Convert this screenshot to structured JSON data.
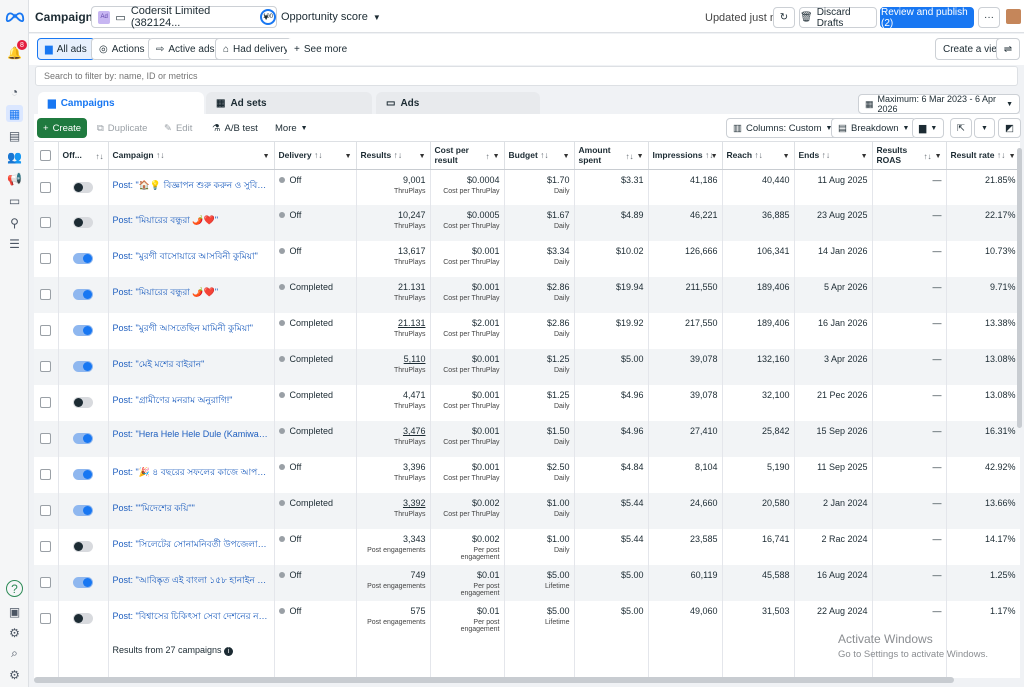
{
  "topbar": {
    "title": "Campaigns",
    "account_initial": "Ad",
    "account_name": "Codersit Limited (382124...",
    "opportunity_ring": "100",
    "opportunity_label": "Opportunity score",
    "updated": "Updated just now",
    "discard": "Discard Drafts",
    "review": "Review and publish (2)"
  },
  "rail": {
    "notification_count": "8"
  },
  "filters": {
    "all_ads": "All ads",
    "actions": "Actions",
    "active_ads": "Active ads",
    "had_delivery": "Had delivery",
    "see_more": "See more",
    "create_view": "Create a view",
    "search_placeholder": "Search to filter by: name, ID or metrics"
  },
  "level_tabs": {
    "campaigns": "Campaigns",
    "ad_sets": "Ad sets",
    "ads": "Ads"
  },
  "date_range": "Maximum: 6 Mar 2023 - 6 Apr 2026",
  "toolbar": {
    "create": "Create",
    "duplicate": "Duplicate",
    "edit": "Edit",
    "ab_test": "A/B test",
    "more": "More",
    "columns": "Columns: Custom",
    "breakdown": "Breakdown"
  },
  "columns": [
    "Off...",
    "Campaign",
    "Delivery",
    "Results",
    "Cost per result",
    "Budget",
    "Amount spent",
    "Impressions",
    "Reach",
    "Ends",
    "Results ROAS",
    "Result rate",
    "Re"
  ],
  "rows": [
    {
      "campaign": "Post: \"🏠💡 বিজ্ঞাপন শুরু করুন ও সুবিধা নিন থেকে দেখুন...",
      "on": false,
      "delivery": "Off",
      "results": "9,001",
      "results_type": "ThruPlays",
      "cpr": "$0.0004",
      "cpr_type": "Cost per ThruPlay",
      "budget": "$1.70",
      "budget_type": "Daily",
      "spent": "$3.31",
      "impressions": "41,186",
      "reach": "40,440",
      "ends": "11 Aug 2025",
      "roas": "—",
      "rate": "21.85%"
    },
    {
      "campaign": "Post: \"মিয়ারের বন্ধুরা 🌶️❤️\"",
      "on": false,
      "delivery": "Off",
      "results": "10,247",
      "results_type": "ThruPlays",
      "cpr": "$0.0005",
      "cpr_type": "Cost per ThruPlay",
      "budget": "$1.67",
      "budget_type": "Daily",
      "spent": "$4.89",
      "impressions": "46,221",
      "reach": "36,885",
      "ends": "23 Aug 2025",
      "roas": "—",
      "rate": "22.17%"
    },
    {
      "campaign": "Post: \"মুরগী বাসোয়ারে আসবিনী কুমিয়া\"",
      "on": true,
      "delivery": "Off",
      "results": "13,617",
      "results_type": "ThruPlays",
      "cpr": "$0.001",
      "cpr_type": "Cost per ThruPlay",
      "budget": "$3.34",
      "budget_type": "Daily",
      "spent": "$10.02",
      "impressions": "126,666",
      "reach": "106,341",
      "ends": "14 Jan 2026",
      "roas": "—",
      "rate": "10.73%"
    },
    {
      "campaign": "Post: \"মিয়ারের বন্ধুরা 🌶️❤️\"",
      "on": true,
      "delivery": "Completed",
      "results": "21.131",
      "results_type": "ThruPlays",
      "cpr": "$0.001",
      "cpr_type": "Cost per ThruPlay",
      "budget": "$2.86",
      "budget_type": "Daily",
      "spent": "$19.94",
      "impressions": "211,550",
      "reach": "189,406",
      "ends": "5 Apr 2026",
      "roas": "—",
      "rate": "9.71%"
    },
    {
      "campaign": "Post: \"মুরগী আসতেছিন মামিনী কুমিয়া\"",
      "on": true,
      "delivery": "Completed",
      "results": "21.131",
      "results_type": "ThruPlays",
      "cpr": "$2.001",
      "cpr_type": "Cost per ThruPlay",
      "budget": "$2.86",
      "budget_type": "Daily",
      "spent": "$19.92",
      "impressions": "217,550",
      "reach": "189,406",
      "ends": "16 Jan 2026",
      "roas": "—",
      "rate": "13.38%"
    },
    {
      "campaign": "Post: \"মেই মশের বাইরান\"",
      "on": true,
      "delivery": "Completed",
      "results": "5,110",
      "results_type": "ThruPlays",
      "cpr": "$0.001",
      "cpr_type": "Cost per ThruPlay",
      "budget": "$1.25",
      "budget_type": "Daily",
      "spent": "$5.00",
      "impressions": "39,078",
      "reach": "132,160",
      "ends": "3 Apr 2026",
      "roas": "—",
      "rate": "13.08%"
    },
    {
      "campaign": "Post: \"গ্রামীণের মনরাম অনুরাগি!\"",
      "on": false,
      "delivery": "Completed",
      "results": "4,471",
      "results_type": "ThruPlays",
      "cpr": "$0.001",
      "cpr_type": "Cost per ThruPlay",
      "budget": "$1.25",
      "budget_type": "Daily",
      "spent": "$4.96",
      "impressions": "39,078",
      "reach": "32,100",
      "ends": "21 Pec 2026",
      "roas": "—",
      "rate": "13.08%"
    },
    {
      "campaign": "Post: \"Hera Hele Hele Dule (Kamiwala)\"",
      "on": true,
      "delivery": "Completed",
      "results": "3,476",
      "results_type": "ThruPlays",
      "cpr": "$0.001",
      "cpr_type": "Cost per ThruPlay",
      "budget": "$1.50",
      "budget_type": "Daily",
      "spent": "$4.96",
      "impressions": "27,410",
      "reach": "25,842",
      "ends": "15 Sep 2026",
      "roas": "—",
      "rate": "16.31%"
    },
    {
      "campaign": "Post: \"🎉 ৪ বছরের সফলের কাজে আপকানের...",
      "on": true,
      "delivery": "Off",
      "results": "3,396",
      "results_type": "ThruPlays",
      "cpr": "$0.001",
      "cpr_type": "Cost per ThruPlay",
      "budget": "$2.50",
      "budget_type": "Daily",
      "spent": "$4.84",
      "impressions": "8,104",
      "reach": "5,190",
      "ends": "11 Sep 2025",
      "roas": "—",
      "rate": "42.92%"
    },
    {
      "campaign": "Post: \"\"মিদেশের কয়ি\"\"",
      "on": true,
      "delivery": "Completed",
      "results": "3,392",
      "results_type": "ThruPlays",
      "cpr": "$0.002",
      "cpr_type": "Cost per ThruPlay",
      "budget": "$1.00",
      "budget_type": "Daily",
      "spent": "$5.44",
      "impressions": "24,660",
      "reach": "20,580",
      "ends": "2 Jan 2024",
      "roas": "—",
      "rate": "13.66%"
    },
    {
      "campaign": "Post: \"সিলেটের সোনামনিবর্তী উপজেলার বিয়ানা...",
      "on": false,
      "delivery": "Off",
      "results": "3,343",
      "results_type": "Post engagements",
      "cpr": "$0.002",
      "cpr_type": "Per post engagement",
      "budget": "$1.00",
      "budget_type": "Daily",
      "spent": "$5.44",
      "impressions": "23,585",
      "reach": "16,741",
      "ends": "2 Rac 2024",
      "roas": "—",
      "rate": "14.17%"
    },
    {
      "campaign": "Post: \"আবিষ্কৃত এই বাংলা ১৫৮ হানাইন বাই টেক...",
      "on": true,
      "delivery": "Off",
      "results": "749",
      "results_type": "Post engagements",
      "cpr": "$0.01",
      "cpr_type": "Per post engagement",
      "budget": "$5.00",
      "budget_type": "Lifetime",
      "spent": "$5.00",
      "impressions": "60,119",
      "reach": "45,588",
      "ends": "16 Aug 2024",
      "roas": "—",
      "rate": "1.25%"
    },
    {
      "campaign": "Post: \"বিশ্বাসের চিকিৎসা সেবা দেশনের নবকা...",
      "on": false,
      "delivery": "Off",
      "results": "575",
      "results_type": "Post engagements",
      "cpr": "$0.01",
      "cpr_type": "Per post engagement",
      "budget": "$5.00",
      "budget_type": "Lifetime",
      "spent": "$5.00",
      "impressions": "49,060",
      "reach": "31,503",
      "ends": "22 Aug 2024",
      "roas": "—",
      "rate": "1.17%"
    }
  ],
  "footer": {
    "summary": "Results from 27 campaigns"
  },
  "watermark": {
    "line1": "Activate Windows",
    "line2": "Go to Settings to activate Windows."
  }
}
